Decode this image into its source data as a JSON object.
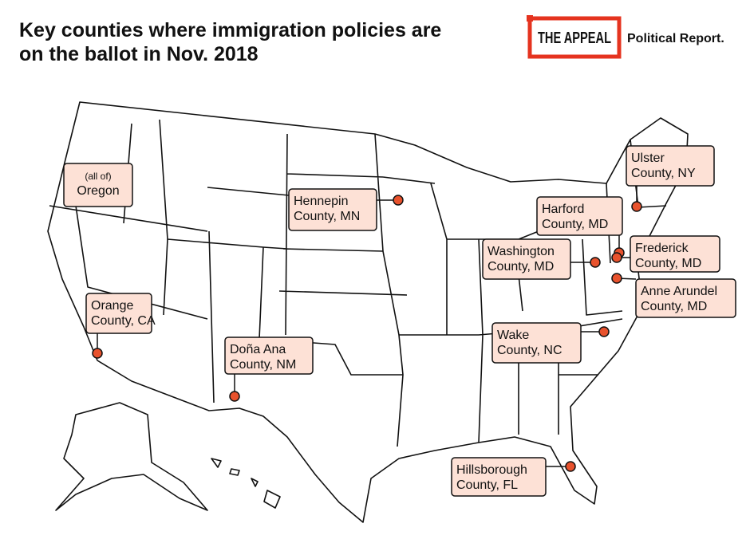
{
  "header": {
    "title": [
      "Key counties where immigration policies are",
      "on the ballot in Nov. 2018"
    ]
  },
  "logo": {
    "brand": "THE APPEAL",
    "sub": "Political Report."
  },
  "locations": [
    {
      "lines": [
        "(all of)",
        "Oregon"
      ]
    },
    {
      "lines": [
        "Hennepin",
        "County, MN"
      ]
    },
    {
      "lines": [
        "Orange",
        "County, CA"
      ]
    },
    {
      "lines": [
        "Doña Ana",
        "County, NM"
      ]
    },
    {
      "lines": [
        "Ulster",
        "County, NY"
      ]
    },
    {
      "lines": [
        "Harford",
        "County, MD"
      ]
    },
    {
      "lines": [
        "Washington",
        "County, MD"
      ]
    },
    {
      "lines": [
        "Frederick",
        "County, MD"
      ]
    },
    {
      "lines": [
        "Anne Arundel",
        "County, MD"
      ]
    },
    {
      "lines": [
        "Wake",
        "County, NC"
      ]
    },
    {
      "lines": [
        "Hillsborough",
        "County, FL"
      ]
    }
  ]
}
